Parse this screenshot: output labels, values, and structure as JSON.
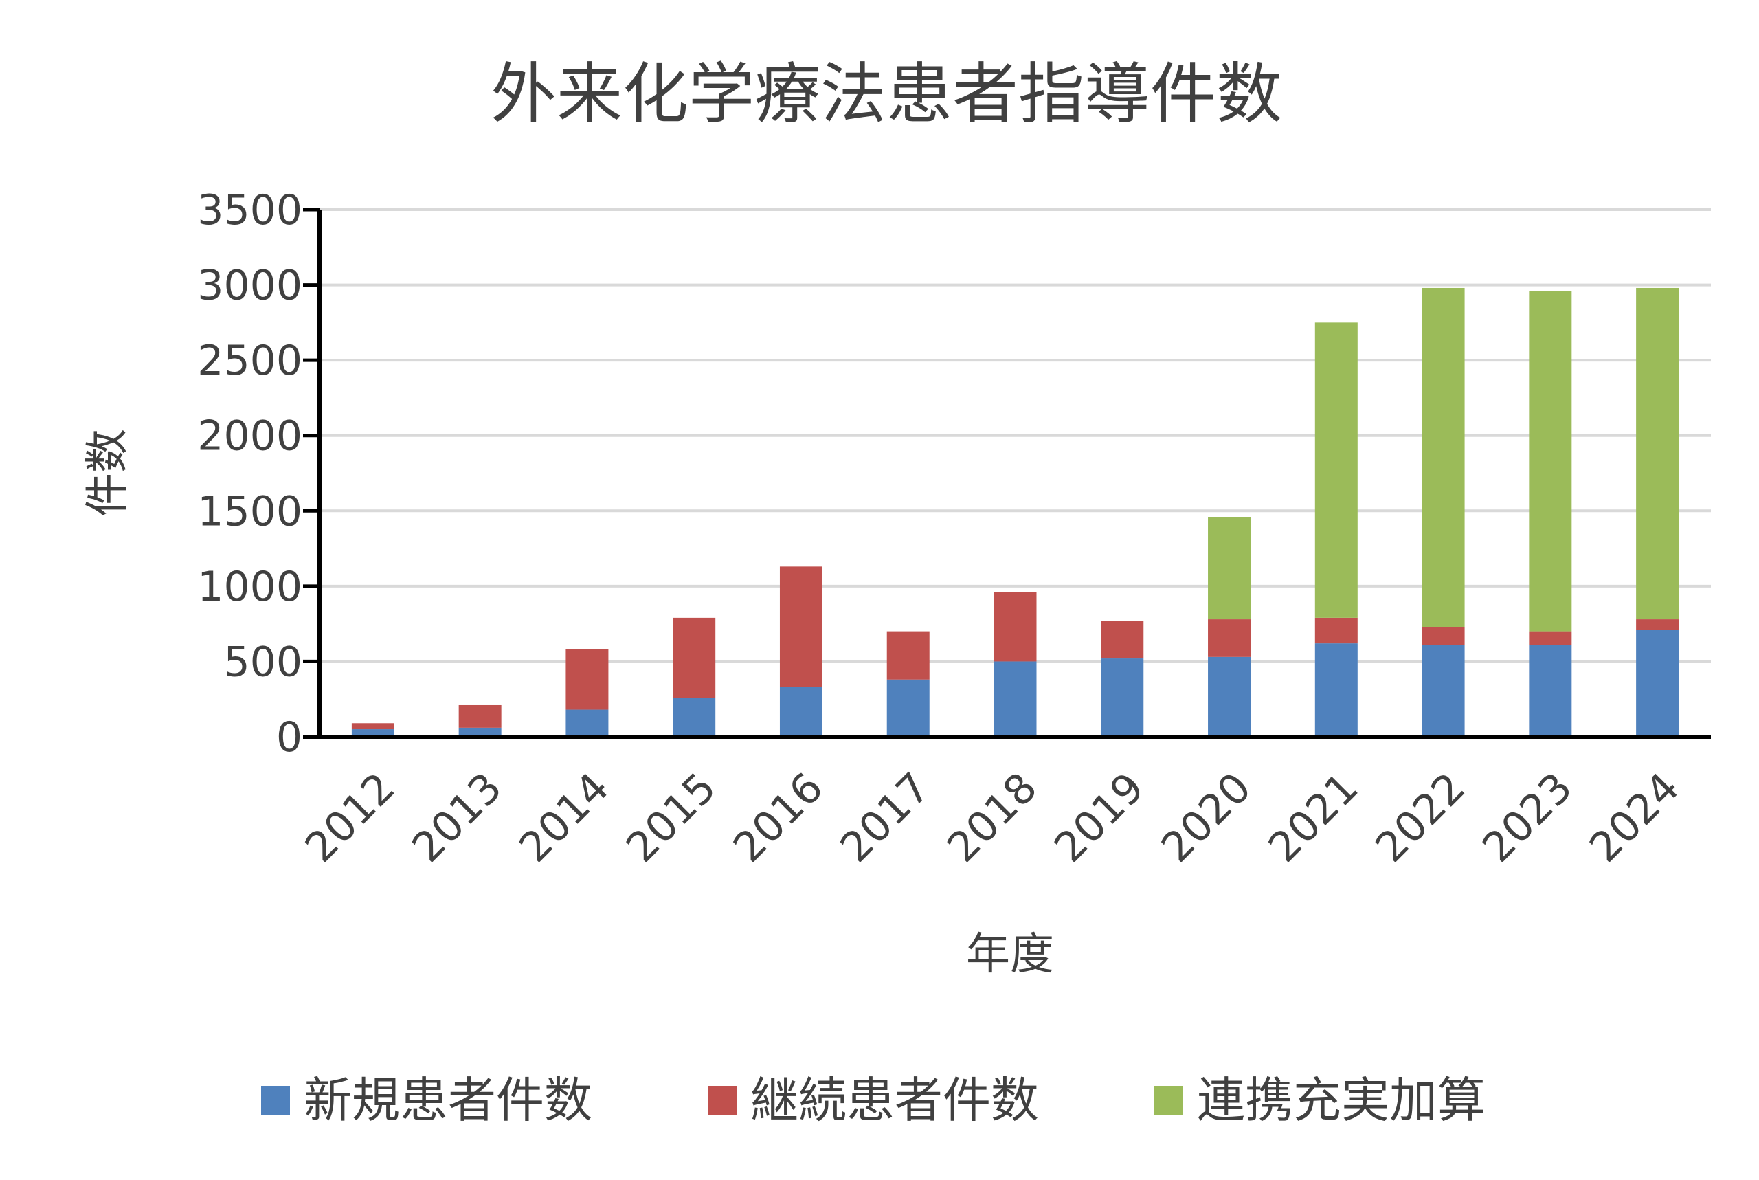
{
  "chart_data": {
    "type": "bar",
    "stacked": true,
    "title": "外来化学療法患者指導件数",
    "xlabel": "年度",
    "ylabel": "件数",
    "ylim": [
      0,
      3500
    ],
    "yticks": [
      0,
      500,
      1000,
      1500,
      2000,
      2500,
      3000,
      3500
    ],
    "grid": true,
    "legend": "bottom",
    "categories": [
      "2012",
      "2013",
      "2014",
      "2015",
      "2016",
      "2017",
      "2018",
      "2019",
      "2020",
      "2021",
      "2022",
      "2023",
      "2024"
    ],
    "series": [
      {
        "name": "新規患者件数",
        "color": "#4f81bd",
        "values": [
          50,
          60,
          180,
          260,
          330,
          380,
          500,
          520,
          530,
          620,
          610,
          610,
          710
        ]
      },
      {
        "name": "継続患者件数",
        "color": "#c0504d",
        "values": [
          40,
          150,
          400,
          530,
          800,
          320,
          460,
          250,
          250,
          170,
          120,
          90,
          70
        ]
      },
      {
        "name": "連携充実加算",
        "color": "#9bbb59",
        "values": [
          0,
          0,
          0,
          0,
          0,
          0,
          0,
          0,
          680,
          1960,
          2250,
          2260,
          2200
        ]
      }
    ]
  }
}
